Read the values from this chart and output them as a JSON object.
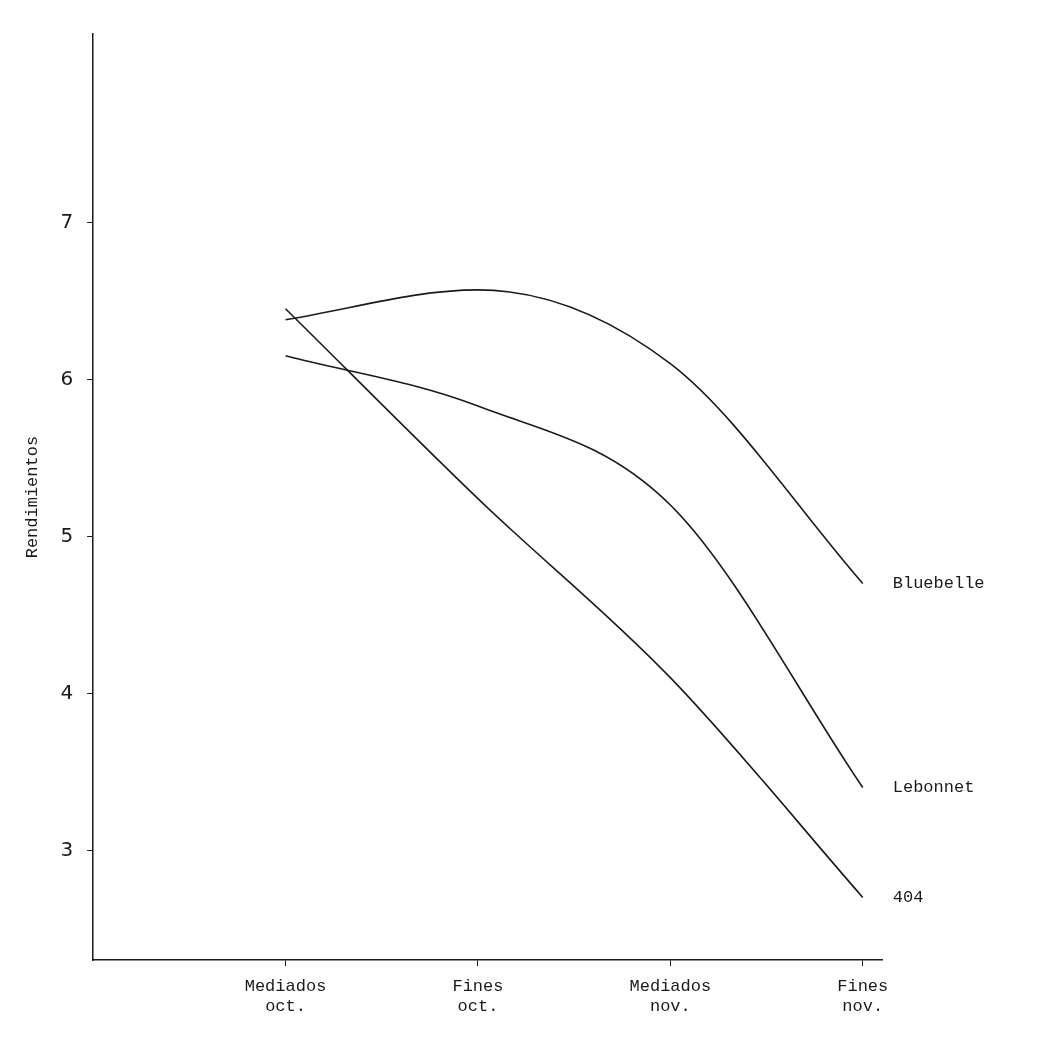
{
  "chart_data": {
    "type": "line",
    "ylabel": "Rendimientos",
    "categories": [
      "Mediados oct.",
      "Fines oct.",
      "Mediados nov.",
      "Fines nov."
    ],
    "series": [
      {
        "name": "Bluebelle",
        "color": "#1a1a1a",
        "values": [
          6.38,
          6.57,
          6.1,
          4.7
        ]
      },
      {
        "name": "Lebonnet",
        "color": "#1a1a1a",
        "values": [
          6.15,
          5.83,
          5.2,
          3.4
        ]
      },
      {
        "name": "404",
        "color": "#1a1a1a",
        "values": [
          6.45,
          5.24,
          4.1,
          2.7
        ]
      }
    ],
    "ylim": [
      2.3,
      8.2
    ],
    "yticks": [
      3,
      4,
      5,
      6,
      7
    ],
    "grid": false,
    "legend": false,
    "marker": "none",
    "line_style": "solid"
  }
}
